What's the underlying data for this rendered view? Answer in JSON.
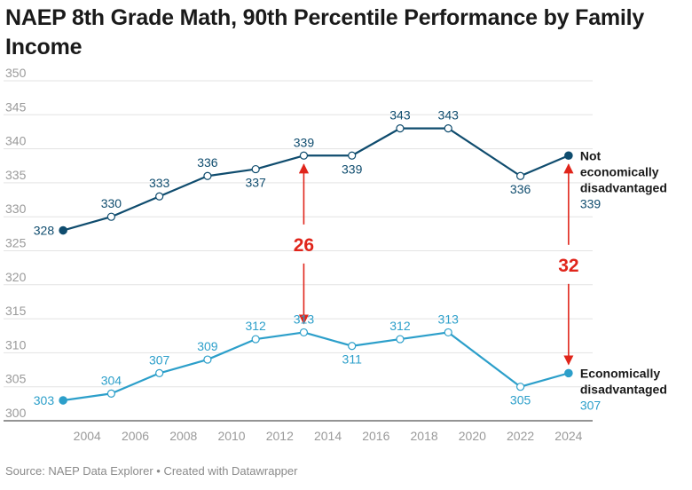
{
  "chart_data": {
    "type": "line",
    "title": "NAEP 8th Grade Math, 90th Percentile Performance by Family Income",
    "source": "Source: NAEP Data Explorer • Created with Datawrapper",
    "x": [
      2003,
      2005,
      2007,
      2009,
      2011,
      2013,
      2015,
      2017,
      2019,
      2022,
      2024
    ],
    "x_ticks": [
      2004,
      2006,
      2008,
      2010,
      2012,
      2014,
      2016,
      2018,
      2020,
      2022,
      2024
    ],
    "y_ticks": [
      300,
      305,
      310,
      315,
      320,
      325,
      330,
      335,
      340,
      345,
      350
    ],
    "xlim": [
      2002,
      2025
    ],
    "ylim": [
      300,
      350
    ],
    "grid": true,
    "legend": "direct labels at line ends",
    "series": [
      {
        "name_lines": [
          "Not",
          "economically",
          "disadvantaged"
        ],
        "color": "#0f4c6e",
        "values": [
          328,
          330,
          333,
          336,
          337,
          339,
          339,
          343,
          343,
          336,
          339
        ],
        "end_value": "339"
      },
      {
        "name_lines": [
          "Economically",
          "disadvantaged"
        ],
        "color": "#2c9fca",
        "values": [
          303,
          304,
          307,
          309,
          312,
          313,
          311,
          312,
          313,
          305,
          307
        ],
        "end_value": "307"
      }
    ],
    "annotations": [
      {
        "x": 2013,
        "label": "26"
      },
      {
        "x": 2024,
        "label": "32"
      }
    ],
    "annotation_color": "#e0251b"
  }
}
